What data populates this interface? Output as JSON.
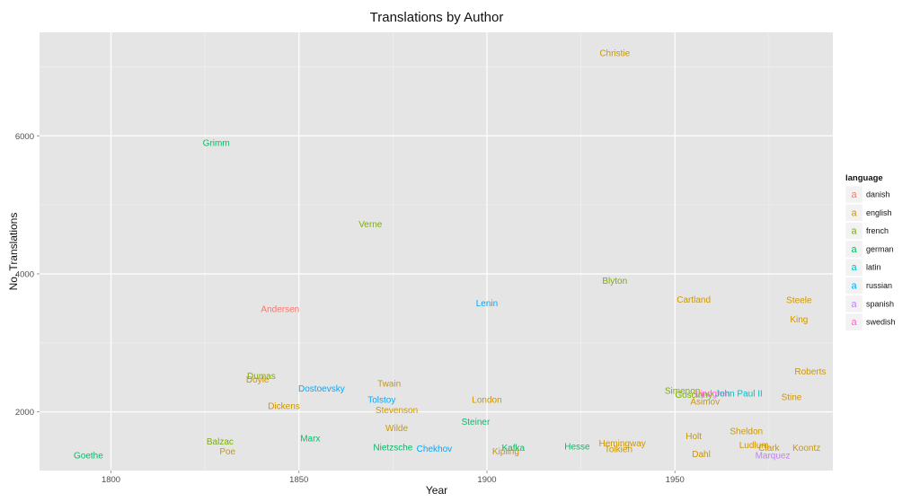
{
  "chart_data": {
    "type": "scatter",
    "title": "Translations by Author",
    "xlabel": "Year",
    "ylabel": "No. Translations",
    "xlim": [
      1781,
      1992
    ],
    "ylim": [
      1150,
      7500
    ],
    "x_ticks": [
      1800,
      1850,
      1900,
      1950
    ],
    "y_ticks": [
      2000,
      4000,
      6000
    ],
    "grid": true,
    "legend": {
      "title": "language",
      "placement": "right",
      "glyph": "a",
      "entries": [
        {
          "label": "danish",
          "color": "#F8766D"
        },
        {
          "label": "english",
          "color": "#CD9600"
        },
        {
          "label": "french",
          "color": "#7CAE00"
        },
        {
          "label": "german",
          "color": "#00BE67"
        },
        {
          "label": "latin",
          "color": "#00BFC4"
        },
        {
          "label": "russian",
          "color": "#00A9FF"
        },
        {
          "label": "spanish",
          "color": "#C77CFF"
        },
        {
          "label": "swedish",
          "color": "#FF61CC"
        }
      ]
    },
    "points": [
      {
        "label": "Christie",
        "x": 1934,
        "y": 7200,
        "language": "english"
      },
      {
        "label": "Grimm",
        "x": 1828,
        "y": 5900,
        "language": "german"
      },
      {
        "label": "Verne",
        "x": 1869,
        "y": 4720,
        "language": "french"
      },
      {
        "label": "Blyton",
        "x": 1934,
        "y": 3900,
        "language": "french"
      },
      {
        "label": "Cartland",
        "x": 1955,
        "y": 3630,
        "language": "english"
      },
      {
        "label": "Steele",
        "x": 1983,
        "y": 3620,
        "language": "english"
      },
      {
        "label": "Lenin",
        "x": 1900,
        "y": 3580,
        "language": "russian"
      },
      {
        "label": "Andersen",
        "x": 1845,
        "y": 3490,
        "language": "danish"
      },
      {
        "label": "King",
        "x": 1983,
        "y": 3340,
        "language": "english"
      },
      {
        "label": "Roberts",
        "x": 1986,
        "y": 2590,
        "language": "english"
      },
      {
        "label": "Dumas",
        "x": 1840,
        "y": 2520,
        "language": "french"
      },
      {
        "label": "Doyle",
        "x": 1839,
        "y": 2470,
        "language": "english"
      },
      {
        "label": "Twain",
        "x": 1874,
        "y": 2410,
        "language": "english"
      },
      {
        "label": "Dostoevsky",
        "x": 1856,
        "y": 2340,
        "language": "russian"
      },
      {
        "label": "Simenon",
        "x": 1952,
        "y": 2310,
        "language": "french"
      },
      {
        "label": "Lindgren",
        "x": 1960,
        "y": 2270,
        "language": "swedish"
      },
      {
        "label": "Goscinny",
        "x": 1955,
        "y": 2250,
        "language": "french"
      },
      {
        "label": "John Paul II",
        "x": 1967,
        "y": 2270,
        "language": "latin"
      },
      {
        "label": "Stine",
        "x": 1981,
        "y": 2220,
        "language": "english"
      },
      {
        "label": "Tolstoy",
        "x": 1872,
        "y": 2180,
        "language": "russian"
      },
      {
        "label": "London",
        "x": 1900,
        "y": 2180,
        "language": "english"
      },
      {
        "label": "Asimov",
        "x": 1958,
        "y": 2150,
        "language": "english"
      },
      {
        "label": "Dickens",
        "x": 1846,
        "y": 2090,
        "language": "english"
      },
      {
        "label": "Stevenson",
        "x": 1876,
        "y": 2030,
        "language": "english"
      },
      {
        "label": "Steiner",
        "x": 1897,
        "y": 1860,
        "language": "german"
      },
      {
        "label": "Wilde",
        "x": 1876,
        "y": 1770,
        "language": "english"
      },
      {
        "label": "Sheldon",
        "x": 1969,
        "y": 1720,
        "language": "english"
      },
      {
        "label": "Holt",
        "x": 1955,
        "y": 1650,
        "language": "english"
      },
      {
        "label": "Marx",
        "x": 1853,
        "y": 1620,
        "language": "german"
      },
      {
        "label": "Balzac",
        "x": 1829,
        "y": 1570,
        "language": "french"
      },
      {
        "label": "Hemingway",
        "x": 1936,
        "y": 1550,
        "language": "english"
      },
      {
        "label": "Ludlum",
        "x": 1971,
        "y": 1520,
        "language": "english"
      },
      {
        "label": "Nietzsche",
        "x": 1875,
        "y": 1490,
        "language": "german"
      },
      {
        "label": "Hesse",
        "x": 1924,
        "y": 1500,
        "language": "german"
      },
      {
        "label": "Kafka",
        "x": 1907,
        "y": 1480,
        "language": "german"
      },
      {
        "label": "Koontz",
        "x": 1985,
        "y": 1480,
        "language": "english"
      },
      {
        "label": "Chekhov",
        "x": 1886,
        "y": 1470,
        "language": "russian"
      },
      {
        "label": "Clark",
        "x": 1975,
        "y": 1480,
        "language": "english"
      },
      {
        "label": "Tolkien",
        "x": 1935,
        "y": 1460,
        "language": "english"
      },
      {
        "label": "Poe",
        "x": 1831,
        "y": 1430,
        "language": "english"
      },
      {
        "label": "Kipling",
        "x": 1905,
        "y": 1430,
        "language": "english"
      },
      {
        "label": "Dahl",
        "x": 1957,
        "y": 1390,
        "language": "english"
      },
      {
        "label": "Goethe",
        "x": 1794,
        "y": 1370,
        "language": "german"
      },
      {
        "label": "Marquez",
        "x": 1976,
        "y": 1370,
        "language": "spanish"
      }
    ]
  }
}
